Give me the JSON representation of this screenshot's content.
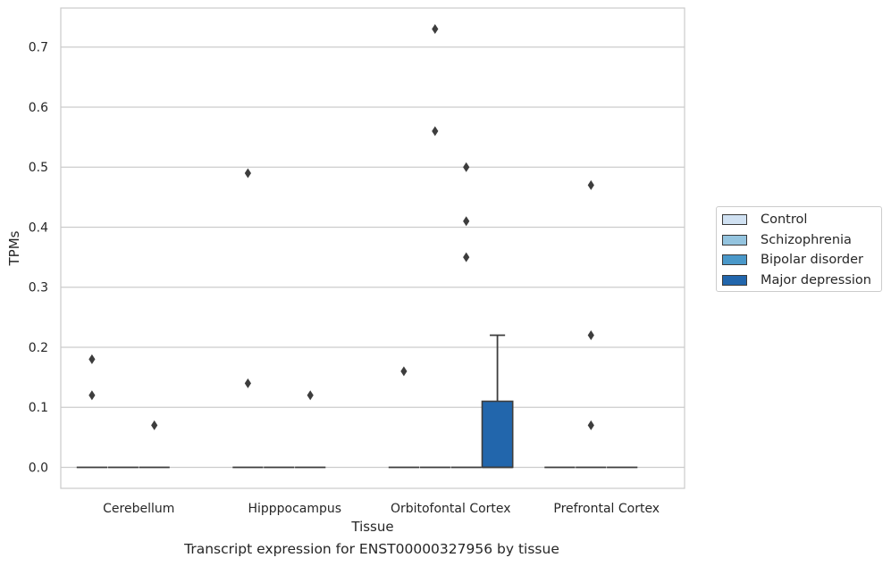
{
  "chart_data": {
    "type": "box",
    "caption": "Transcript expression for ENST00000327956 by tissue",
    "xlabel": "Tissue",
    "ylabel": "TPMs",
    "ylim": [
      -0.035,
      0.765
    ],
    "yticks": [
      0.0,
      0.1,
      0.2,
      0.3,
      0.4,
      0.5,
      0.6,
      0.7
    ],
    "ytick_labels": [
      "0.0",
      "0.1",
      "0.2",
      "0.3",
      "0.4",
      "0.5",
      "0.6",
      "0.7"
    ],
    "grid": "horizontal",
    "legend_position": "outside-right",
    "categories": [
      "Cerebellum",
      "Hipppocampus",
      "Orbitofontal Cortex",
      "Prefrontal Cortex"
    ],
    "series": [
      {
        "name": "Control",
        "color": "#d0e1f2",
        "boxes": [
          {
            "q1": 0,
            "median": 0,
            "q3": 0,
            "whisker_low": 0,
            "whisker_high": 0,
            "outliers": [
              0.18,
              0.12
            ]
          },
          {
            "q1": 0,
            "median": 0,
            "q3": 0,
            "whisker_low": 0,
            "whisker_high": 0,
            "outliers": [
              0.49,
              0.14
            ]
          },
          {
            "q1": 0,
            "median": 0,
            "q3": 0,
            "whisker_low": 0,
            "whisker_high": 0,
            "outliers": [
              0.16
            ]
          },
          {
            "q1": 0,
            "median": 0,
            "q3": 0,
            "whisker_low": 0,
            "whisker_high": 0,
            "outliers": []
          }
        ]
      },
      {
        "name": "Schizophrenia",
        "color": "#94c4df",
        "boxes": [
          {
            "q1": 0,
            "median": 0,
            "q3": 0,
            "whisker_low": 0,
            "whisker_high": 0,
            "outliers": []
          },
          {
            "q1": 0,
            "median": 0,
            "q3": 0,
            "whisker_low": 0,
            "whisker_high": 0,
            "outliers": []
          },
          {
            "q1": 0,
            "median": 0,
            "q3": 0,
            "whisker_low": 0,
            "whisker_high": 0,
            "outliers": [
              0.73,
              0.56
            ]
          },
          {
            "q1": 0,
            "median": 0,
            "q3": 0,
            "whisker_low": 0,
            "whisker_high": 0,
            "outliers": [
              0.47,
              0.22,
              0.07
            ]
          }
        ]
      },
      {
        "name": "Bipolar disorder",
        "color": "#4a98c9",
        "boxes": [
          {
            "q1": 0,
            "median": 0,
            "q3": 0,
            "whisker_low": 0,
            "whisker_high": 0,
            "outliers": [
              0.07
            ]
          },
          {
            "q1": 0,
            "median": 0,
            "q3": 0,
            "whisker_low": 0,
            "whisker_high": 0,
            "outliers": [
              0.12
            ]
          },
          {
            "q1": 0,
            "median": 0,
            "q3": 0,
            "whisker_low": 0,
            "whisker_high": 0,
            "outliers": [
              0.5,
              0.41,
              0.35
            ]
          },
          {
            "q1": 0,
            "median": 0,
            "q3": 0,
            "whisker_low": 0,
            "whisker_high": 0,
            "outliers": []
          }
        ]
      },
      {
        "name": "Major depression",
        "color": "#2266ac",
        "boxes": [
          null,
          null,
          {
            "q1": 0,
            "median": 0,
            "q3": 0.11,
            "whisker_low": 0,
            "whisker_high": 0.22,
            "outliers": []
          },
          null
        ]
      }
    ]
  }
}
